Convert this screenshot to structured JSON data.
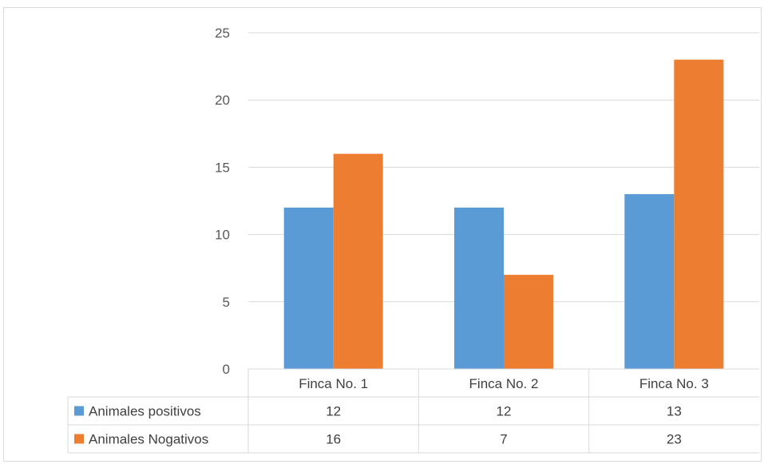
{
  "chart_data": {
    "type": "bar",
    "categories": [
      "Finca No. 1",
      "Finca No. 2",
      "Finca No. 3"
    ],
    "series": [
      {
        "name": "Animales positivos",
        "values": [
          12,
          12,
          13
        ],
        "color": "#5b9bd5"
      },
      {
        "name": "Animales Nogativos",
        "values": [
          16,
          7,
          23
        ],
        "color": "#ed7d31"
      }
    ],
    "y_ticks": [
      "0",
      "5",
      "10",
      "15",
      "20",
      "25"
    ],
    "ylim": [
      0,
      25
    ],
    "grid": true,
    "legend": "data-table"
  },
  "colors": {
    "gridline": "#d9d9d9",
    "table_border": "#d9d9d9"
  }
}
